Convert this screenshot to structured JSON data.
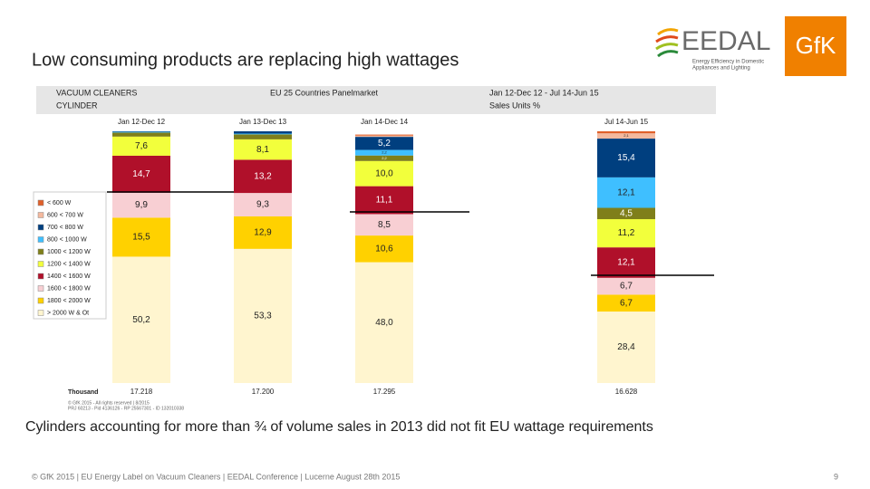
{
  "logos": {
    "eedal": "EEDAL",
    "eedal_tagline": [
      "Energy Efficiency in Domestic",
      "Appliances and Lighting"
    ],
    "gfk": "GfK"
  },
  "header": {
    "left": [
      "VACUUM CLEANERS",
      "CYLINDER"
    ],
    "middle": "EU 25 Countries  Panelmarket",
    "right": [
      "Jan 12-Dec 12 - Jul 14-Jun 15",
      "Sales Units %"
    ]
  },
  "chart_data": {
    "type": "stacked-bar",
    "title": "Low consuming products are replacing high wattages",
    "categories": [
      "Jan 12-Dec 12",
      "Jan 13-Dec 13",
      "Jan 14-Dec 14",
      "Jul 14-Jun 15"
    ],
    "ylim": [
      0,
      100
    ],
    "series": [
      {
        "name": "> 2000 W & Ot",
        "color": "#fff5cf",
        "values": [
          50.2,
          53.3,
          48.0,
          28.4
        ],
        "value_labels": [
          "50,2",
          "53,3",
          "48,0",
          "28,4"
        ]
      },
      {
        "name": "1800 < 2000 W",
        "color": "#ffd100",
        "values": [
          15.5,
          12.9,
          10.6,
          6.7
        ],
        "value_labels": [
          "15,5",
          "12,9",
          "10,6",
          "6,7"
        ]
      },
      {
        "name": "1600 < 1800 W",
        "color": "#f8cfd3",
        "values": [
          9.9,
          9.3,
          8.5,
          6.7
        ],
        "value_labels": [
          "9,9",
          "9,3",
          "8,5",
          "6,7"
        ]
      },
      {
        "name": "1400 < 1600 W",
        "color": "#b0102a",
        "values": [
          14.7,
          13.2,
          11.1,
          12.1
        ],
        "value_labels": [
          "14,7",
          "13,2",
          "11,1",
          "12,1"
        ]
      },
      {
        "name": "1200 < 1400 W",
        "color": "#f2ff3c",
        "values": [
          7.6,
          8.1,
          10.0,
          11.2
        ],
        "value_labels": [
          "7,6",
          "8,1",
          "10,0",
          "11,2"
        ]
      },
      {
        "name": "1000 < 1200 W",
        "color": "#7f7f1a",
        "values": [
          1.6,
          2.0,
          2.2,
          4.5
        ],
        "value_labels": [
          null,
          null,
          "2,2",
          "4,5"
        ]
      },
      {
        "name": "800 < 1000 W",
        "color": "#3fbfff",
        "values": [
          0.3,
          0.3,
          2.2,
          12.1
        ],
        "value_labels": [
          null,
          null,
          "2,2",
          "12,1"
        ]
      },
      {
        "name": "700 < 800 W",
        "color": "#003f7f",
        "values": [
          0.2,
          0.9,
          5.2,
          15.4
        ],
        "value_labels": [
          null,
          null,
          "5,2",
          "15,4"
        ]
      },
      {
        "name": "600 < 700 W",
        "color": "#f4b99e",
        "values": [
          0,
          0,
          0.5,
          2.1
        ],
        "value_labels": [
          null,
          null,
          null,
          "2,1"
        ]
      },
      {
        "name": "< 600 W",
        "color": "#e0602a",
        "values": [
          0,
          0,
          0.4,
          0.8
        ],
        "value_labels": [
          null,
          null,
          null,
          null
        ]
      }
    ],
    "totals": {
      "label": "Thousand",
      "values": [
        17218,
        17200,
        17295,
        16628
      ],
      "value_labels": [
        "17.218",
        "17.200",
        "17.295",
        "16.628"
      ]
    },
    "notes": [
      "© GfK 2015 - All rights reserved | 8/2015",
      "PRJ 60213 - Pid 4136126 - RP 25567301 - ID 132010338"
    ],
    "annotation": "Cylinders accounting for more than ¾ of volume sales in 2013 did not fit EU wattage requirements"
  },
  "footer": {
    "text": "© GfK 2015 | EU Energy Label on Vacuum Cleaners | EEDAL Conference | Lucerne August 28th 2015",
    "page": "9"
  }
}
